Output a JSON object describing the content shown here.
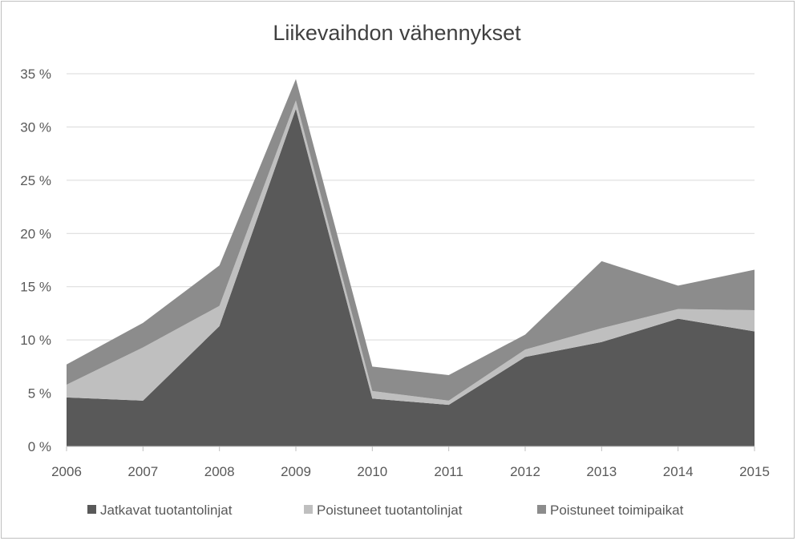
{
  "chart_data": {
    "type": "area",
    "stacked": true,
    "title": "Liikevaihdon vähennykset",
    "xlabel": "",
    "ylabel": "",
    "categories": [
      "2006",
      "2007",
      "2008",
      "2009",
      "2010",
      "2011",
      "2012",
      "2013",
      "2014",
      "2015"
    ],
    "ylim": [
      0,
      35
    ],
    "yticks": [
      0,
      5,
      10,
      15,
      20,
      25,
      30,
      35
    ],
    "ytick_labels": [
      "0 %",
      "5 %",
      "10 %",
      "15 %",
      "20 %",
      "25 %",
      "30 %",
      "35 %"
    ],
    "grid": true,
    "legend_position": "bottom",
    "series": [
      {
        "name": "Jatkavat tuotantolinjat",
        "color": "#595959",
        "values": [
          4.6,
          4.3,
          11.3,
          31.7,
          4.5,
          3.9,
          8.4,
          9.8,
          12.0,
          10.8
        ]
      },
      {
        "name": "Poistuneet tuotantolinjat",
        "color": "#bfbfbf",
        "values": [
          1.2,
          5.0,
          1.9,
          0.8,
          0.7,
          0.4,
          0.7,
          1.3,
          0.9,
          2.0
        ]
      },
      {
        "name": "Poistuneet toimipaikat",
        "color": "#8c8c8c",
        "values": [
          1.9,
          2.3,
          3.8,
          2.0,
          2.3,
          2.4,
          1.4,
          6.3,
          2.2,
          3.8
        ]
      }
    ]
  }
}
